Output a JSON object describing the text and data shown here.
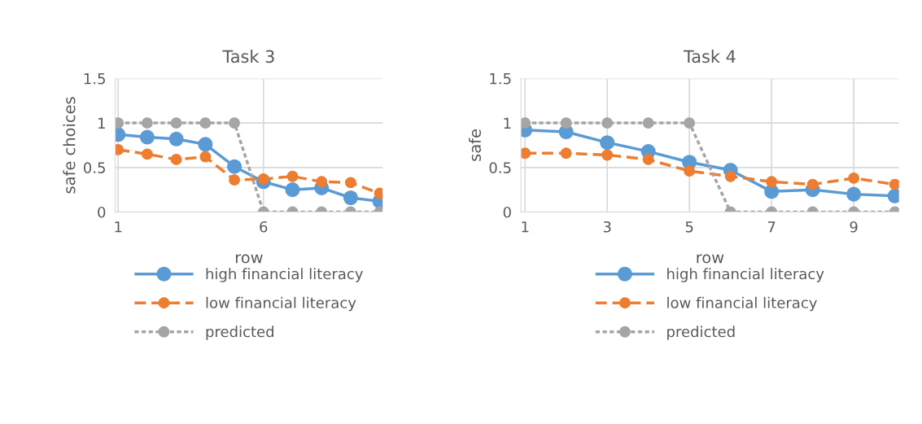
{
  "chart_data": [
    {
      "type": "line",
      "title": "Task 3",
      "xlabel": "row",
      "ylabel": "safe choices",
      "categories": [
        "1",
        null,
        null,
        null,
        null,
        "6",
        null,
        null,
        null,
        null
      ],
      "ylim": [
        0,
        1.5
      ],
      "yticks": [
        0,
        0.5,
        1,
        1.5
      ],
      "grid": true,
      "legend": "bottom",
      "marker": "circle",
      "series": [
        {
          "name": "high financial literacy",
          "color": "#5b9bd5",
          "line_style": "solid",
          "values": [
            0.87,
            0.84,
            0.82,
            0.76,
            0.51,
            0.34,
            0.25,
            0.27,
            0.16,
            0.12
          ]
        },
        {
          "name": "low financial literacy",
          "color": "#ed7d31",
          "line_style": "dashed",
          "values": [
            0.7,
            0.65,
            0.59,
            0.62,
            0.36,
            0.37,
            0.4,
            0.34,
            0.33,
            0.21
          ]
        },
        {
          "name": "predicted",
          "color": "#a5a5a5",
          "line_style": "dotted",
          "values": [
            1,
            1,
            1,
            1,
            1,
            0,
            0,
            0,
            0,
            0
          ]
        }
      ]
    },
    {
      "type": "line",
      "title": "Task 4",
      "xlabel": "row",
      "ylabel": "safe",
      "categories": [
        "1",
        null,
        "3",
        null,
        "5",
        null,
        "7",
        null,
        "9",
        null
      ],
      "ylim": [
        0,
        1.5
      ],
      "yticks": [
        0,
        0.5,
        1,
        1.5
      ],
      "grid": true,
      "legend": "bottom",
      "marker": "circle",
      "series": [
        {
          "name": "high financial literacy",
          "color": "#5b9bd5",
          "line_style": "solid",
          "values": [
            0.92,
            0.9,
            0.78,
            0.68,
            0.56,
            0.47,
            0.23,
            0.25,
            0.2,
            0.18
          ]
        },
        {
          "name": "low financial literacy",
          "color": "#ed7d31",
          "line_style": "dashed",
          "values": [
            0.66,
            0.66,
            0.64,
            0.59,
            0.46,
            0.4,
            0.34,
            0.31,
            0.38,
            0.31
          ]
        },
        {
          "name": "predicted",
          "color": "#a5a5a5",
          "line_style": "dotted",
          "values": [
            1,
            1,
            1,
            1,
            1,
            0,
            0,
            0,
            0,
            0
          ]
        }
      ]
    }
  ]
}
